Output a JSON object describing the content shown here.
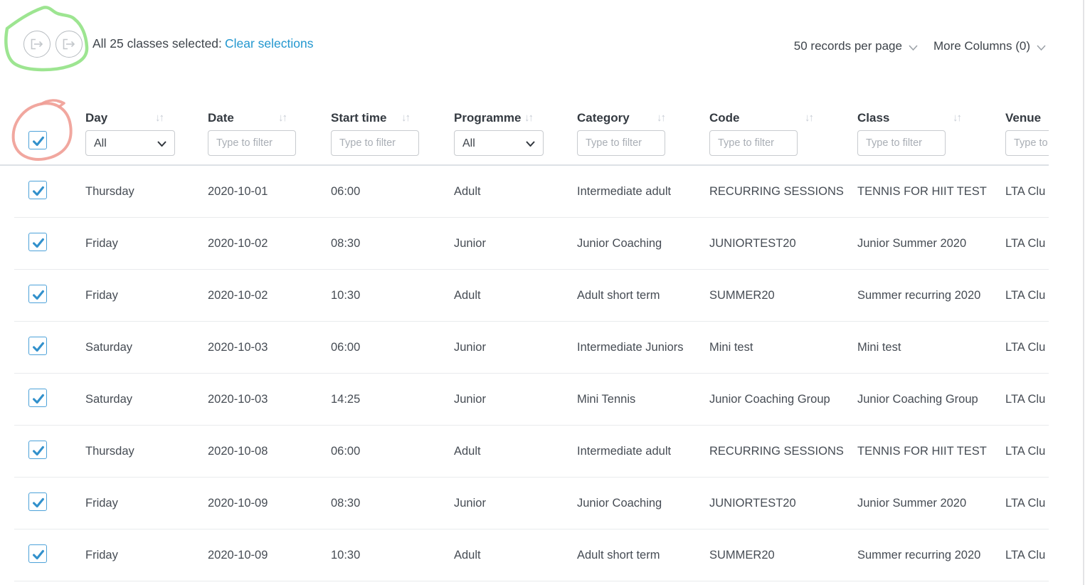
{
  "toolbar": {
    "selection_text": "All 25 classes selected:",
    "clear_link": "Clear selections",
    "records_per_page": "50 records per page",
    "more_columns": "More Columns (0)"
  },
  "table": {
    "select_all_checked": true,
    "filter_placeholder": "Type to filter",
    "sort_glyph": "↓↑",
    "columns": [
      {
        "field": "day",
        "label": "Day",
        "sortable": true,
        "filter": "select",
        "value": "All"
      },
      {
        "field": "date",
        "label": "Date",
        "sortable": true,
        "filter": "text",
        "placeholder": "Type to filter"
      },
      {
        "field": "start_time",
        "label": "Start time",
        "sortable": true,
        "filter": "text",
        "placeholder": "Type to filter"
      },
      {
        "field": "programme",
        "label": "Programme",
        "sortable": true,
        "filter": "select",
        "value": "All"
      },
      {
        "field": "category",
        "label": "Category",
        "sortable": true,
        "filter": "text",
        "placeholder": "Type to filter"
      },
      {
        "field": "code",
        "label": "Code",
        "sortable": true,
        "filter": "text",
        "placeholder": "Type to filter"
      },
      {
        "field": "class_name",
        "label": "Class",
        "sortable": true,
        "filter": "text",
        "placeholder": "Type to filter"
      },
      {
        "field": "venue",
        "label": "Venue",
        "sortable": false,
        "filter": "text",
        "placeholder": "Type to filter"
      }
    ],
    "rows": [
      {
        "checked": true,
        "day": "Thursday",
        "date": "2020-10-01",
        "start_time": "06:00",
        "programme": "Adult",
        "category": "Intermediate adult",
        "code": "RECURRING SESSIONS",
        "class_name": "TENNIS FOR HIIT TEST",
        "venue": "LTA Clu"
      },
      {
        "checked": true,
        "day": "Friday",
        "date": "2020-10-02",
        "start_time": "08:30",
        "programme": "Junior",
        "category": "Junior Coaching",
        "code": "JUNIORTEST20",
        "class_name": "Junior Summer 2020",
        "venue": "LTA Clu"
      },
      {
        "checked": true,
        "day": "Friday",
        "date": "2020-10-02",
        "start_time": "10:30",
        "programme": "Adult",
        "category": "Adult short term",
        "code": "SUMMER20",
        "class_name": "Summer recurring 2020",
        "venue": "LTA Clu"
      },
      {
        "checked": true,
        "day": "Saturday",
        "date": "2020-10-03",
        "start_time": "06:00",
        "programme": "Junior",
        "category": "Intermediate Juniors",
        "code": "Mini test",
        "class_name": "Mini test",
        "venue": "LTA Clu"
      },
      {
        "checked": true,
        "day": "Saturday",
        "date": "2020-10-03",
        "start_time": "14:25",
        "programme": "Junior",
        "category": "Mini Tennis",
        "code": "Junior Coaching Group",
        "class_name": "Junior Coaching Group",
        "venue": "LTA Clu"
      },
      {
        "checked": true,
        "day": "Thursday",
        "date": "2020-10-08",
        "start_time": "06:00",
        "programme": "Adult",
        "category": "Intermediate adult",
        "code": "RECURRING SESSIONS",
        "class_name": "TENNIS FOR HIIT TEST",
        "venue": "LTA Clu"
      },
      {
        "checked": true,
        "day": "Friday",
        "date": "2020-10-09",
        "start_time": "08:30",
        "programme": "Junior",
        "category": "Junior Coaching",
        "code": "JUNIORTEST20",
        "class_name": "Junior Summer 2020",
        "venue": "LTA Clu"
      },
      {
        "checked": true,
        "day": "Friday",
        "date": "2020-10-09",
        "start_time": "10:30",
        "programme": "Adult",
        "category": "Adult short term",
        "code": "SUMMER20",
        "class_name": "Summer recurring 2020",
        "venue": "LTA Clu"
      }
    ]
  },
  "annotations": {
    "green_highlight_target": "export buttons",
    "red_highlight_target": "select-all checkbox",
    "green_color": "#8ce07e",
    "red_color": "#f09d95"
  },
  "colors": {
    "link": "#2397cf",
    "checkbox_blue": "#4da2d9",
    "check_stroke": "#3391cc"
  }
}
